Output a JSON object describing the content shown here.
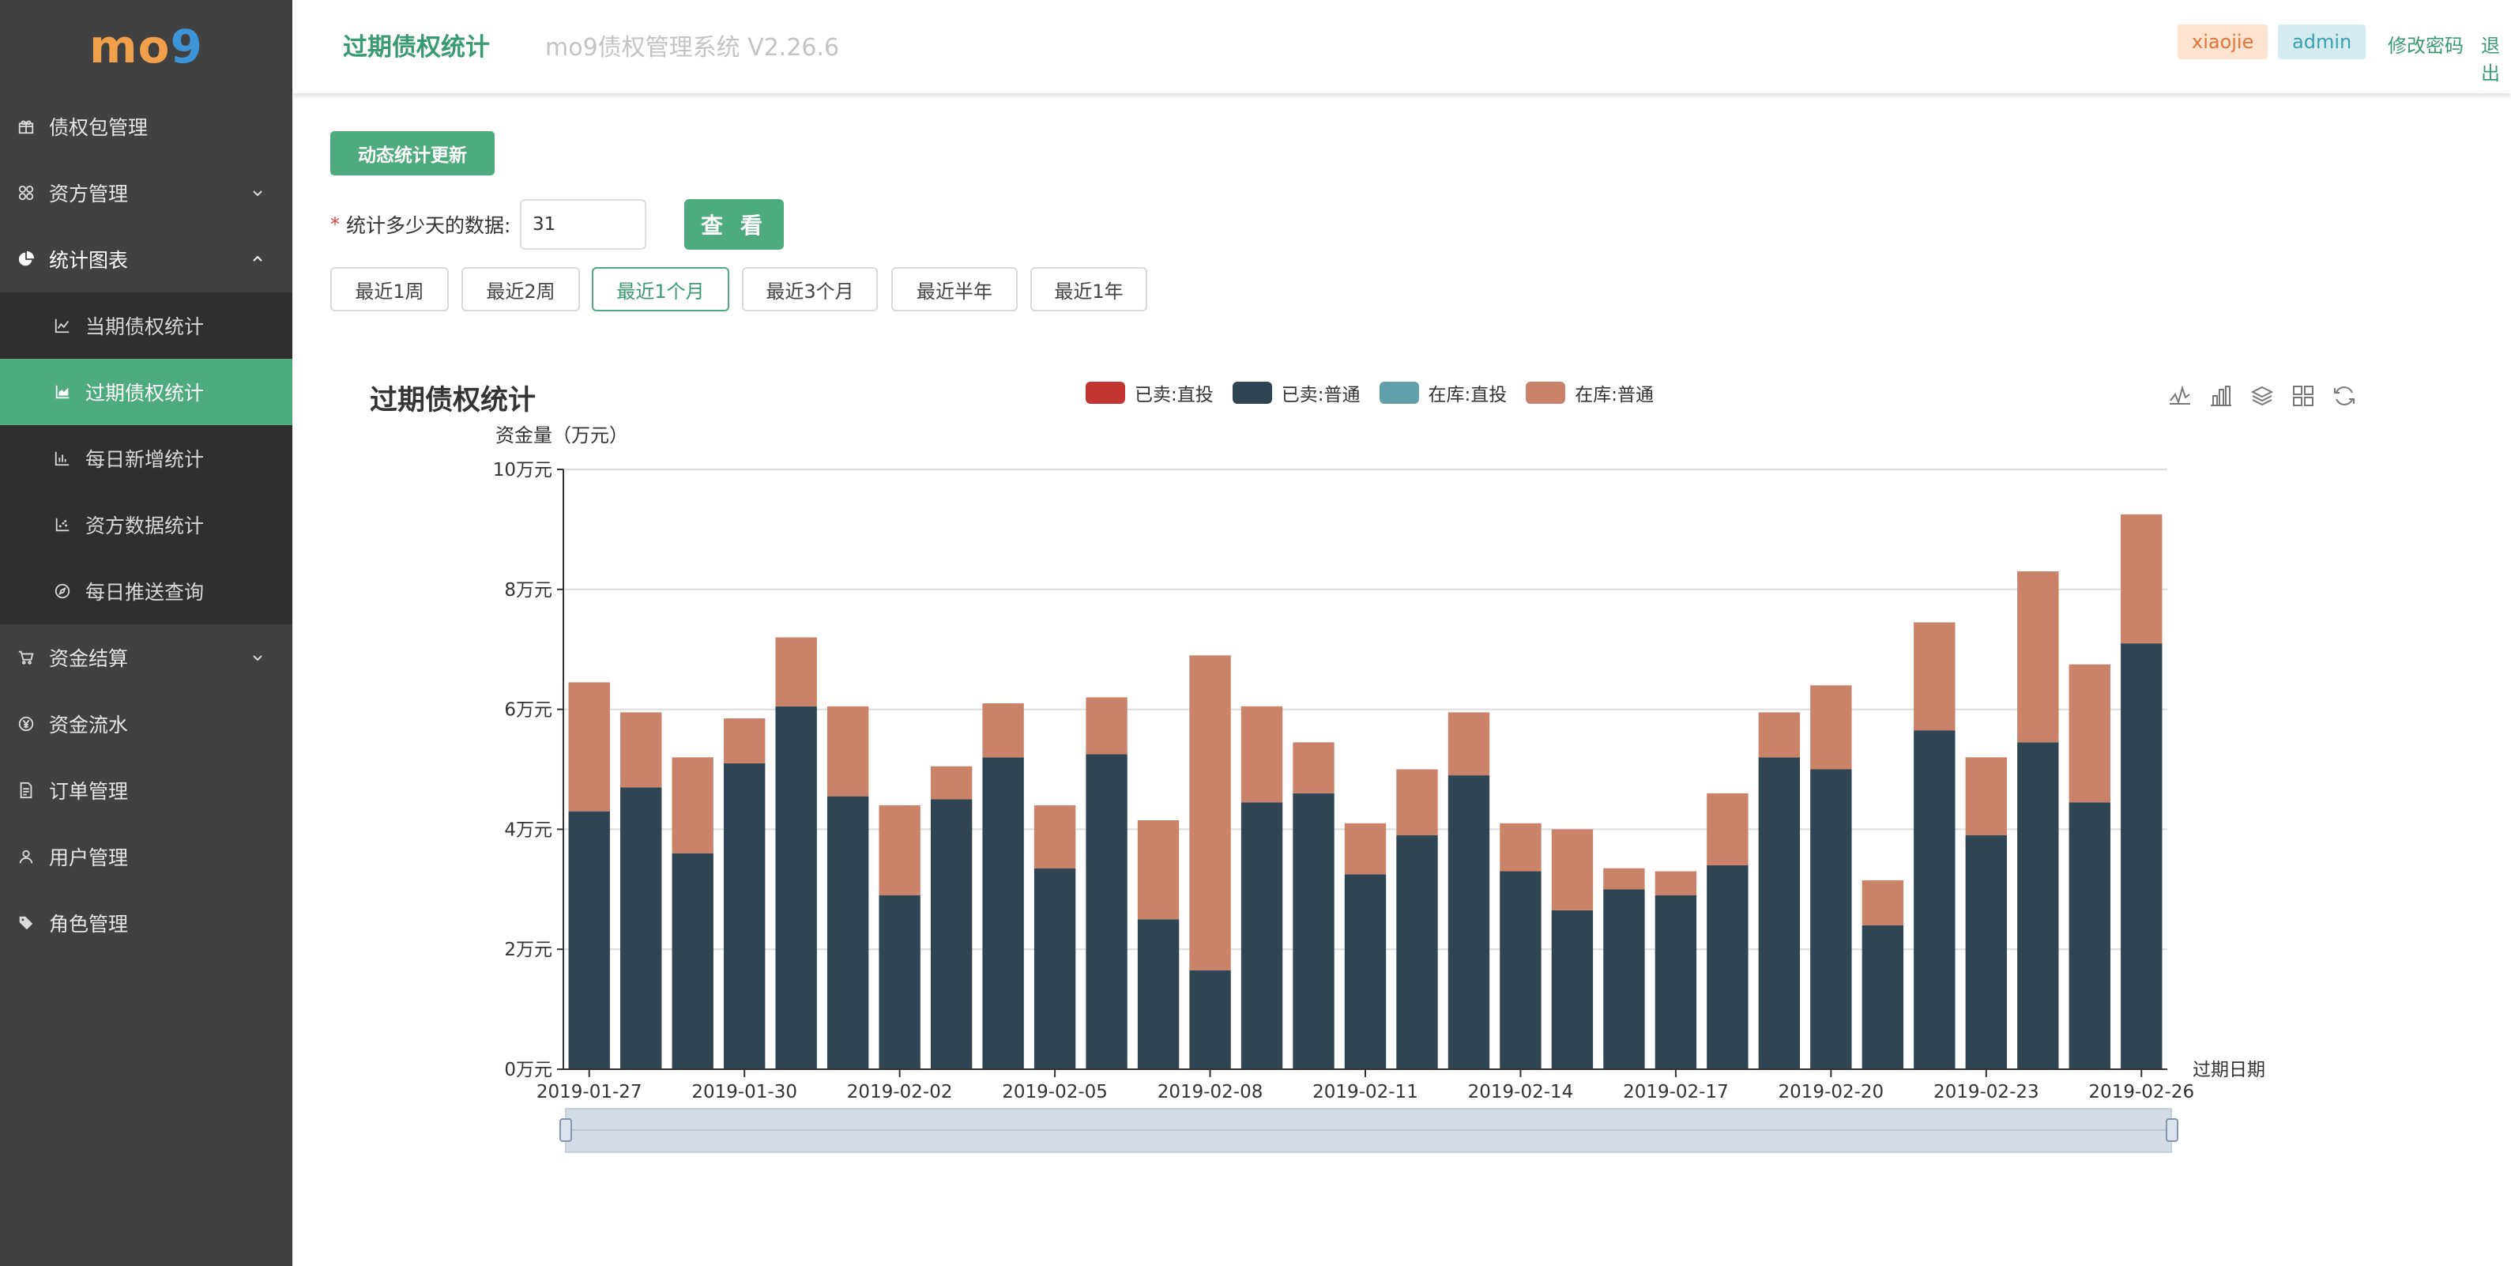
{
  "logo": {
    "part1": "mo",
    "part2": "9"
  },
  "sidebar": {
    "items": [
      {
        "label": "债权包管理",
        "icon": "gift-icon"
      },
      {
        "label": "资方管理",
        "icon": "apps-icon"
      },
      {
        "label": "统计图表",
        "icon": "pie-chart-icon"
      },
      {
        "label": "资金结算",
        "icon": "cart-icon"
      },
      {
        "label": "资金流水",
        "icon": "yen-circle-icon"
      },
      {
        "label": "订单管理",
        "icon": "document-icon"
      },
      {
        "label": "用户管理",
        "icon": "user-icon"
      },
      {
        "label": "角色管理",
        "icon": "tag-icon"
      }
    ],
    "stats_sub": [
      {
        "label": "当期债权统计",
        "icon": "line-chart-icon"
      },
      {
        "label": "过期债权统计",
        "icon": "area-chart-icon"
      },
      {
        "label": "每日新增统计",
        "icon": "bar-chart-icon"
      },
      {
        "label": "资方数据统计",
        "icon": "dot-chart-icon"
      },
      {
        "label": "每日推送查询",
        "icon": "compass-icon"
      }
    ]
  },
  "header": {
    "title": "过期债权统计",
    "system": "mo9债权管理系统 V2.26.6",
    "user": "xiaojie",
    "role": "admin",
    "change_password": "修改密码",
    "logout": "退出"
  },
  "controls": {
    "update_button": "动态统计更新",
    "required_mark": "*",
    "days_label": "统计多少天的数据:",
    "days_value": "31",
    "view_button": "查 看",
    "ranges": [
      "最近1周",
      "最近2周",
      "最近1个月",
      "最近3个月",
      "最近半年",
      "最近1年"
    ],
    "active_range": "最近1个月"
  },
  "colors": {
    "accent": "#4eaa7f",
    "sidebar_bg": "#414141",
    "submenu_bg": "#2f2f2f"
  },
  "chart_data": {
    "type": "bar",
    "stacked": true,
    "title": "过期债权统计",
    "ylabel": "资金量（万元）",
    "xlabel": "过期日期",
    "ylim": [
      0,
      10
    ],
    "yticks": [
      "0万元",
      "2万元",
      "4万元",
      "6万元",
      "8万元",
      "10万元"
    ],
    "grid": true,
    "legend_position": "top-center",
    "categories": [
      "2019-01-27",
      "2019-01-28",
      "2019-01-29",
      "2019-01-30",
      "2019-01-31",
      "2019-02-01",
      "2019-02-02",
      "2019-02-03",
      "2019-02-04",
      "2019-02-05",
      "2019-02-06",
      "2019-02-07",
      "2019-02-08",
      "2019-02-09",
      "2019-02-10",
      "2019-02-11",
      "2019-02-12",
      "2019-02-13",
      "2019-02-14",
      "2019-02-15",
      "2019-02-16",
      "2019-02-17",
      "2019-02-18",
      "2019-02-19",
      "2019-02-20",
      "2019-02-21",
      "2019-02-22",
      "2019-02-23",
      "2019-02-24",
      "2019-02-25",
      "2019-02-26"
    ],
    "xtick_labels": [
      "2019-01-27",
      "2019-01-30",
      "2019-02-02",
      "2019-02-05",
      "2019-02-08",
      "2019-02-11",
      "2019-02-14",
      "2019-02-17",
      "2019-02-20",
      "2019-02-23",
      "2019-02-26"
    ],
    "series": [
      {
        "name": "已卖:直投",
        "color": "#c23531",
        "values": [
          0,
          0,
          0,
          0,
          0,
          0,
          0,
          0,
          0,
          0,
          0,
          0,
          0,
          0,
          0,
          0,
          0,
          0,
          0,
          0,
          0,
          0,
          0,
          0,
          0,
          0,
          0,
          0,
          0,
          0,
          0
        ]
      },
      {
        "name": "已卖:普通",
        "color": "#2f4554",
        "values": [
          4.3,
          4.7,
          3.6,
          5.1,
          6.05,
          4.55,
          2.9,
          4.5,
          5.2,
          3.35,
          5.25,
          2.5,
          1.65,
          4.45,
          4.6,
          3.25,
          3.9,
          4.9,
          3.3,
          2.65,
          3.0,
          2.9,
          3.4,
          5.2,
          5.0,
          2.4,
          5.65,
          3.9,
          5.45,
          4.45,
          7.1
        ]
      },
      {
        "name": "在库:直投",
        "color": "#61a0a8",
        "values": [
          0,
          0,
          0,
          0,
          0,
          0,
          0,
          0,
          0,
          0,
          0,
          0,
          0,
          0,
          0,
          0,
          0,
          0,
          0,
          0,
          0,
          0,
          0,
          0,
          0,
          0,
          0,
          0,
          0,
          0,
          0
        ]
      },
      {
        "name": "在库:普通",
        "color": "#ca8268",
        "values": [
          2.15,
          1.25,
          1.6,
          0.75,
          1.15,
          1.5,
          1.5,
          0.55,
          0.9,
          1.05,
          0.95,
          1.65,
          5.25,
          1.6,
          0.85,
          0.85,
          1.1,
          1.05,
          0.8,
          1.35,
          0.35,
          0.4,
          1.2,
          0.75,
          1.4,
          0.75,
          1.8,
          1.3,
          2.85,
          2.3,
          2.15
        ]
      }
    ]
  }
}
